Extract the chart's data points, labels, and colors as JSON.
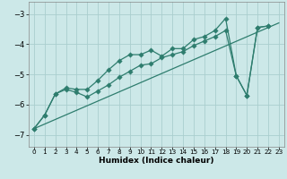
{
  "xlabel": "Humidex (Indice chaleur)",
  "ylabel": "",
  "bg_color": "#cce8e8",
  "line_color": "#2e7d6e",
  "grid_color": "#aacece",
  "xlim": [
    -0.5,
    23.5
  ],
  "ylim": [
    -7.4,
    -2.6
  ],
  "xticks": [
    0,
    1,
    2,
    3,
    4,
    5,
    6,
    7,
    8,
    9,
    10,
    11,
    12,
    13,
    14,
    15,
    16,
    17,
    18,
    19,
    20,
    21,
    22,
    23
  ],
  "yticks": [
    -7,
    -6,
    -5,
    -4,
    -3
  ],
  "lines": [
    {
      "x": [
        0,
        23
      ],
      "y": [
        -6.8,
        -3.3
      ],
      "marker": false
    },
    {
      "x": [
        0,
        1,
        2,
        3,
        4,
        5,
        6,
        7,
        8,
        9,
        10,
        11,
        12,
        13,
        14,
        15,
        16,
        17,
        18,
        19,
        20,
        21,
        22
      ],
      "y": [
        -6.8,
        -6.35,
        -5.65,
        -5.5,
        -5.6,
        -5.75,
        -5.55,
        -5.35,
        -5.1,
        -4.9,
        -4.7,
        -4.65,
        -4.45,
        -4.35,
        -4.25,
        -4.05,
        -3.9,
        -3.75,
        -3.55,
        -5.05,
        -5.7,
        -3.45,
        -3.4
      ],
      "marker": true
    },
    {
      "x": [
        0,
        1,
        2,
        3,
        4,
        5,
        6,
        7,
        8,
        9,
        10,
        11,
        12,
        13,
        14,
        15,
        16,
        17,
        18,
        19,
        20,
        21,
        22
      ],
      "y": [
        -6.8,
        -6.35,
        -5.65,
        -5.45,
        -5.5,
        -5.5,
        -5.2,
        -4.85,
        -4.55,
        -4.35,
        -4.35,
        -4.2,
        -4.4,
        -4.15,
        -4.15,
        -3.85,
        -3.75,
        -3.55,
        -3.15,
        -5.05,
        -5.7,
        -3.45,
        -3.4
      ],
      "marker": true
    }
  ]
}
